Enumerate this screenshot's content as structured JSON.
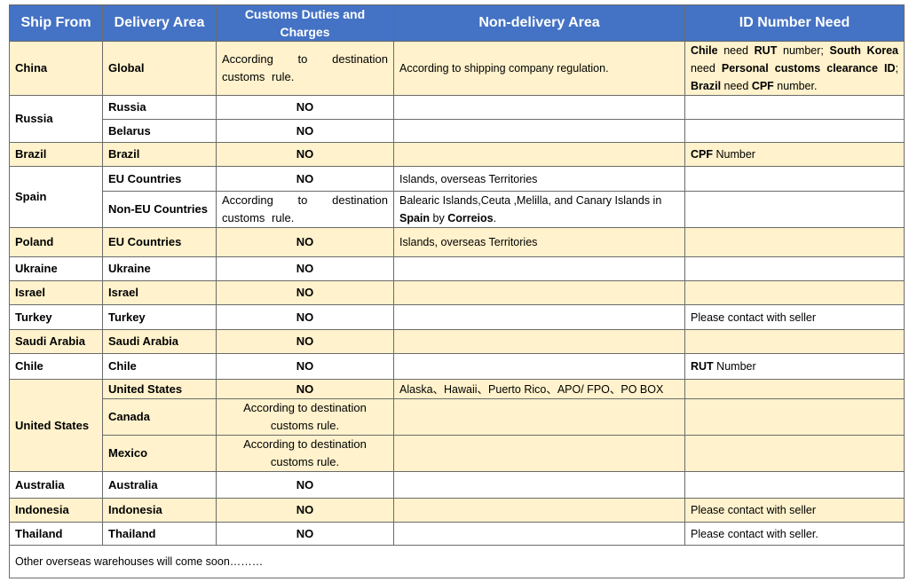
{
  "table": {
    "header": [
      "Ship From",
      "Delivery Area",
      "Customs Duties and Charges",
      "Non-delivery Area",
      "ID Number Need"
    ],
    "groups": [
      {
        "ship_from": "China",
        "areas": [
          {
            "area": "Global",
            "customs": "According to destination customs rule.",
            "customs_align": "justify",
            "non_delivery": "According to shipping company regulation.",
            "id_need": [
              {
                "text": "Chile",
                "bold": true
              },
              {
                "text": " need "
              },
              {
                "text": "RUT",
                "bold": true
              },
              {
                "text": " number; "
              },
              {
                "text": "South Korea",
                "bold": true
              },
              {
                "text": " need "
              },
              {
                "text": "Personal customs clearance ID",
                "bold": true
              },
              {
                "text": "; "
              },
              {
                "text": "Brazil",
                "bold": true
              },
              {
                "text": " need "
              },
              {
                "text": "CPF",
                "bold": true
              },
              {
                "text": " number."
              }
            ]
          }
        ]
      },
      {
        "ship_from": "Russia",
        "areas": [
          {
            "area": "Russia",
            "customs": "NO"
          },
          {
            "area": "Belarus",
            "customs": "NO"
          }
        ]
      },
      {
        "ship_from": "Brazil",
        "areas": [
          {
            "area": "Brazil",
            "customs": "NO",
            "id_need": [
              {
                "text": "CPF",
                "bold": true
              },
              {
                "text": " Number"
              }
            ]
          }
        ]
      },
      {
        "ship_from": "Spain",
        "areas": [
          {
            "area": "EU Countries",
            "customs": "NO",
            "non_delivery": "Islands, overseas Territories"
          },
          {
            "area": "Non-EU Countries",
            "customs": "According to destination customs rule.",
            "customs_align": "justify",
            "non_delivery": [
              {
                "text": "Balearic Islands,Ceuta ,Melilla, and Canary Islands in "
              },
              {
                "text": "Spain",
                "bold": true
              },
              {
                "text": " by "
              },
              {
                "text": "Correios",
                "bold": true
              },
              {
                "text": "."
              }
            ]
          }
        ]
      },
      {
        "ship_from": "Poland",
        "areas": [
          {
            "area": "EU Countries",
            "customs": "NO",
            "non_delivery": "Islands, overseas Territories"
          }
        ]
      },
      {
        "ship_from": "Ukraine",
        "areas": [
          {
            "area": "Ukraine",
            "customs": "NO"
          }
        ]
      },
      {
        "ship_from": "Israel",
        "areas": [
          {
            "area": "Israel",
            "customs": "NO"
          }
        ]
      },
      {
        "ship_from": "Turkey",
        "areas": [
          {
            "area": "Turkey",
            "customs": "NO",
            "id_need": "Please contact with seller"
          }
        ]
      },
      {
        "ship_from": "Saudi Arabia",
        "areas": [
          {
            "area": "Saudi Arabia",
            "customs": "NO"
          }
        ]
      },
      {
        "ship_from": "Chile",
        "areas": [
          {
            "area": "Chile",
            "customs": "NO",
            "id_need": [
              {
                "text": "RUT",
                "bold": true
              },
              {
                "text": " Number"
              }
            ]
          }
        ]
      },
      {
        "ship_from": "United States",
        "areas": [
          {
            "area": "United States",
            "customs": "NO",
            "non_delivery": "Alaska、Hawaii、Puerto Rico、APO/ FPO、PO BOX"
          },
          {
            "area": "Canada",
            "customs": "According to destination customs rule."
          },
          {
            "area": "Mexico",
            "customs": "According to destination customs rule."
          }
        ]
      },
      {
        "ship_from": "Australia",
        "areas": [
          {
            "area": "Australia",
            "customs": "NO"
          }
        ]
      },
      {
        "ship_from": "Indonesia",
        "areas": [
          {
            "area": "Indonesia",
            "customs": "NO",
            "id_need": "Please contact with seller"
          }
        ]
      },
      {
        "ship_from": "Thailand",
        "areas": [
          {
            "area": "Thailand",
            "customs": "NO",
            "id_need": "Please contact with seller."
          }
        ]
      }
    ],
    "footer": "Other overseas warehouses will come soon………"
  }
}
